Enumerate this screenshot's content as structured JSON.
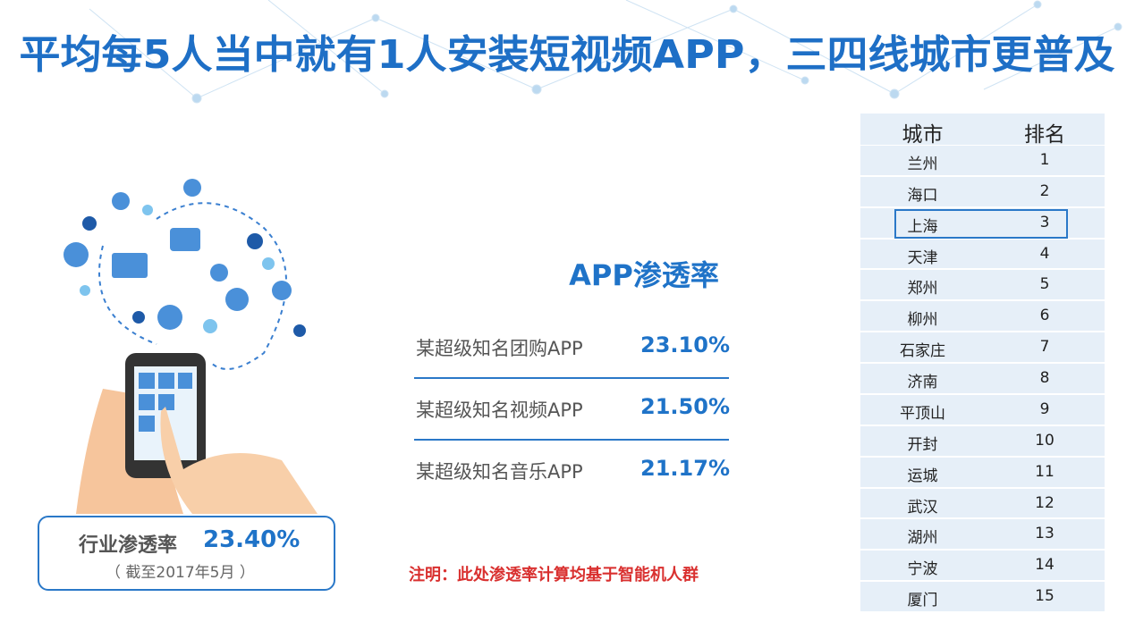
{
  "header": {
    "title": "平均每5人当中就有1人安装短视频APP，三四线城市更普及"
  },
  "industry": {
    "label": "行业渗透率",
    "value": "23.40%",
    "note": "（ 截至2017年5月 ）"
  },
  "penetration": {
    "heading": "APP渗透率",
    "items": [
      {
        "name": "某超级知名团购APP",
        "value": "23.10%"
      },
      {
        "name": "某超级知名视频APP",
        "value": "21.50%"
      },
      {
        "name": "某超级知名音乐APP",
        "value": "21.17%"
      }
    ]
  },
  "footnote": "注明：此处渗透率计算均基于智能机人群",
  "table": {
    "header": [
      "城市",
      "排名"
    ],
    "rows": [
      [
        "兰州",
        1
      ],
      [
        "海口",
        2
      ],
      [
        "上海",
        3
      ],
      [
        "天津",
        4
      ],
      [
        "郑州",
        5
      ],
      [
        "柳州",
        6
      ],
      [
        "石家庄",
        7
      ],
      [
        "济南",
        8
      ],
      [
        "平顶山",
        9
      ],
      [
        "开封",
        10
      ],
      [
        "运城",
        11
      ],
      [
        "武汉",
        12
      ],
      [
        "湖州",
        13
      ],
      [
        "宁波",
        14
      ],
      [
        "厦门",
        15
      ]
    ]
  }
}
